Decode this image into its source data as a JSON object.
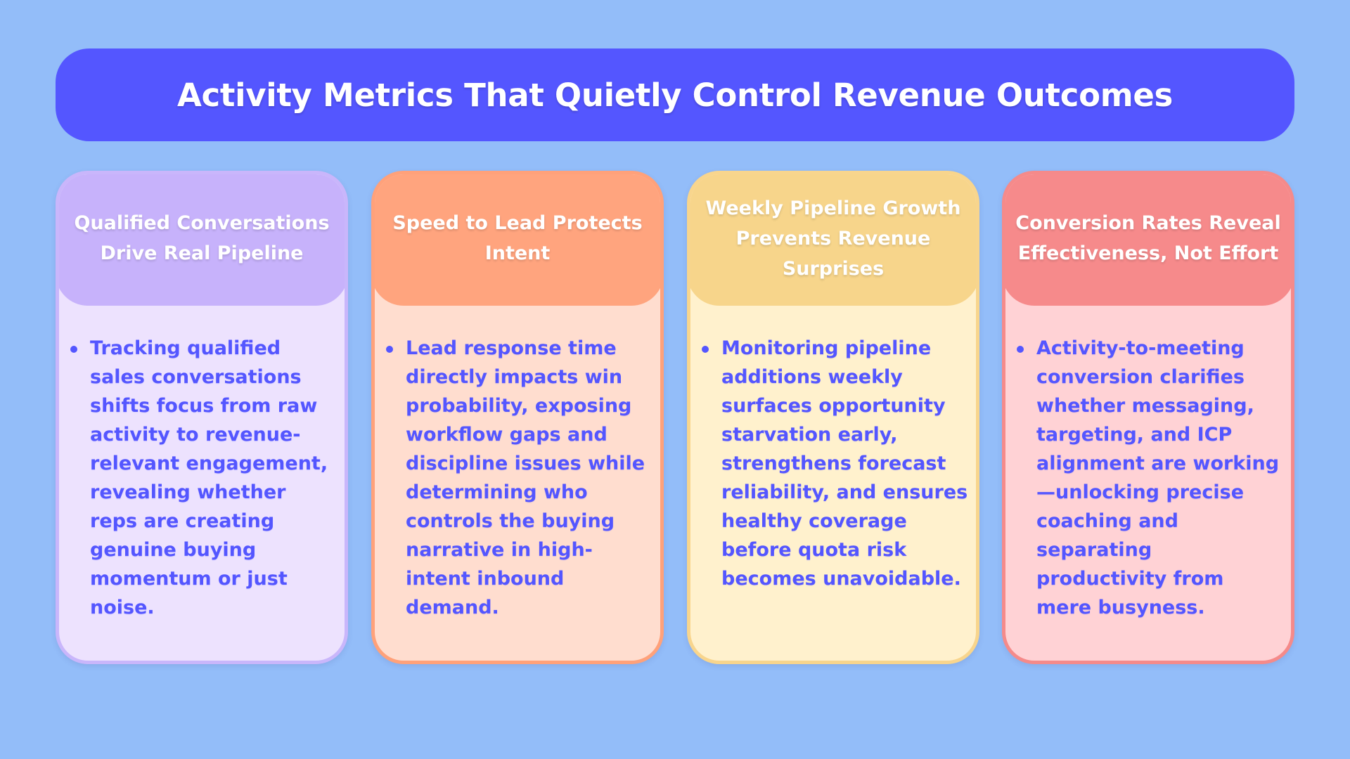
{
  "title": "Activity Metrics That Quietly Control Revenue Outcomes",
  "colors": {
    "background": "#93BDF9",
    "title_bar": "#5456FF",
    "text_accent": "#5456FF"
  },
  "cards": [
    {
      "heading": "Qualified Conversations Drive Real Pipeline",
      "body": "Tracking qualified sales conversations shifts focus from raw activity to revenue-relevant engagement, revealing whether reps are creating genuine buying momentum or just noise.",
      "head_color": "#C7B2FB",
      "body_color": "#EDE2FE"
    },
    {
      "heading": "Speed to Lead Protects Intent",
      "body": "Lead response time directly impacts win probability, exposing workflow gaps and discipline issues while determining who controls the buying narrative in high-intent inbound demand.",
      "head_color": "#FFA47E",
      "body_color": "#FFDDCF"
    },
    {
      "heading": "Weekly Pipeline Growth Prevents Revenue Surprises",
      "body": "Monitoring pipeline additions weekly surfaces opportunity starvation early, strengthens forecast reliability, and ensures healthy coverage before quota risk becomes unavoidable.",
      "head_color": "#F7D58B",
      "body_color": "#FFF1CD"
    },
    {
      "heading": "Conversion Rates Reveal Effectiveness, Not Effort",
      "body": "Activity-to-meeting conversion clarifies whether messaging, targeting, and ICP alignment are working—unlocking precise coaching and separating productivity from mere busyness.",
      "head_color": "#F68A8B",
      "body_color": "#FFD2D5"
    }
  ]
}
